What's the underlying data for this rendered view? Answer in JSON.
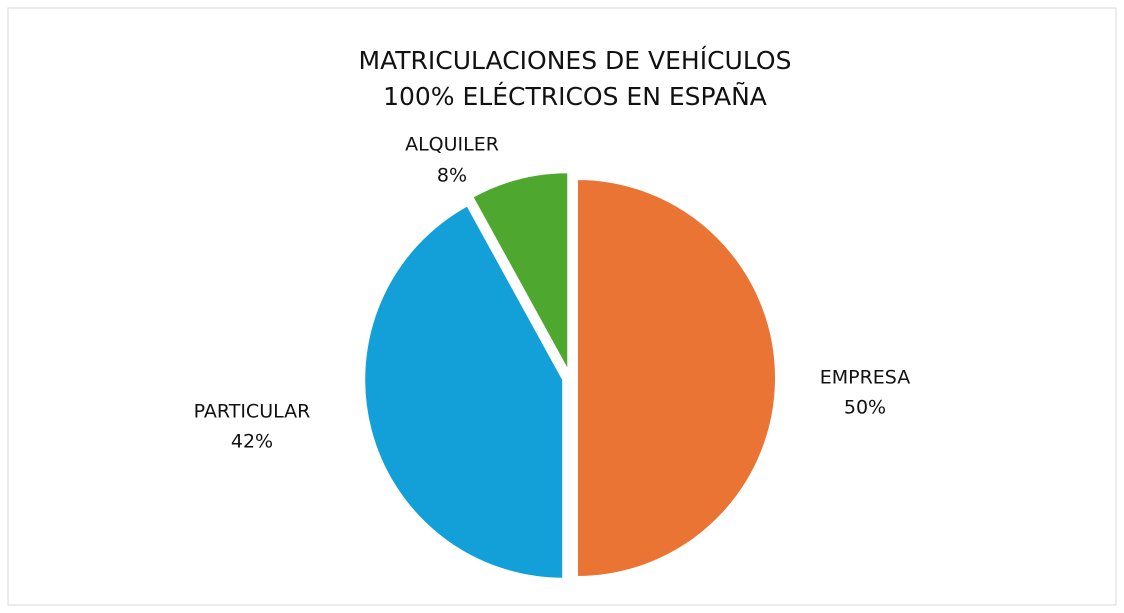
{
  "chart_data": {
    "type": "pie",
    "title": [
      "MATRICULACIONES DE VEHÍCULOS",
      "100% ELÉCTRICOS EN ESPAÑA"
    ],
    "categories": [
      "EMPRESA",
      "PARTICULAR",
      "ALQUILER"
    ],
    "values": [
      50,
      42,
      8
    ],
    "value_labels": [
      "50%",
      "42%",
      "8%"
    ],
    "colors": [
      "#e97434",
      "#139fd8",
      "#4ea72e"
    ]
  }
}
